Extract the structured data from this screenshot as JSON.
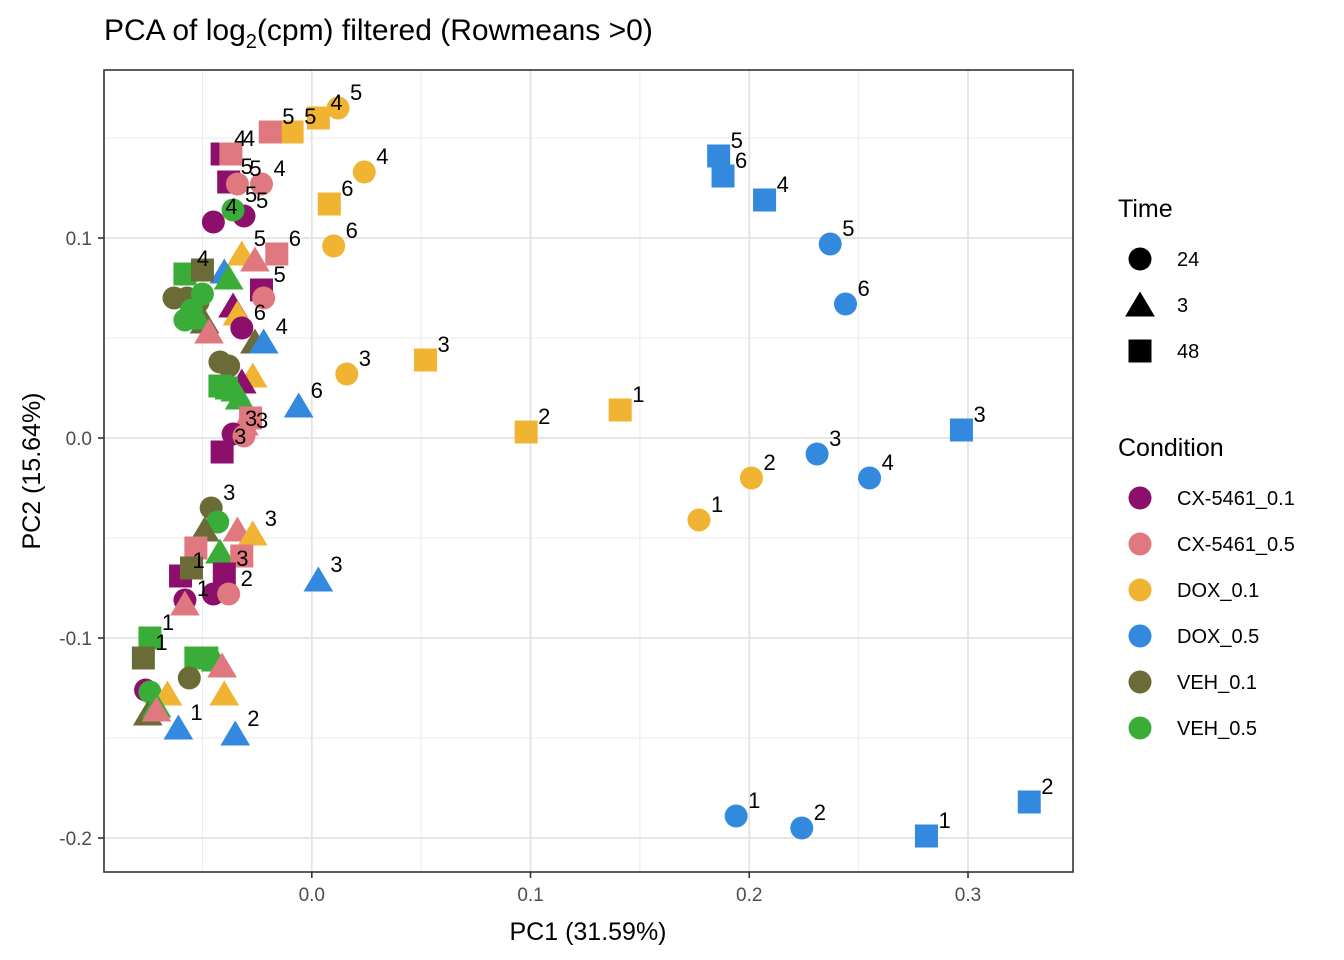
{
  "chart_data": {
    "type": "scatter",
    "title_main": "PCA of log",
    "title_sub": "2",
    "title_rest": "(cpm) filtered (Rowmeans >0)",
    "xlabel": "PC1 (31.59%)",
    "ylabel": "PC2 (15.64%)",
    "xlim": [
      -0.095,
      0.348
    ],
    "ylim": [
      -0.217,
      0.184
    ],
    "x_ticks": [
      0.0,
      0.1,
      0.2,
      0.3
    ],
    "x_tick_labels": [
      "0.0",
      "0.1",
      "0.2",
      "0.3"
    ],
    "y_ticks": [
      -0.2,
      -0.1,
      0.0,
      0.1
    ],
    "y_tick_labels": [
      "-0.2",
      "-0.1",
      "0.0",
      "0.1"
    ],
    "grid": true,
    "legend_placement": "right",
    "legend_time": {
      "title": "Time",
      "items": [
        {
          "label": "24",
          "shape": "circle"
        },
        {
          "label": "3",
          "shape": "triangle"
        },
        {
          "label": "48",
          "shape": "square"
        }
      ]
    },
    "legend_condition": {
      "title": "Condition",
      "items": [
        {
          "label": "CX-5461_0.1",
          "color": "#8B0F6B"
        },
        {
          "label": "CX-5461_0.5",
          "color": "#E07880"
        },
        {
          "label": "DOX_0.1",
          "color": "#F0B332"
        },
        {
          "label": "DOX_0.5",
          "color": "#3389DD"
        },
        {
          "label": "VEH_0.1",
          "color": "#6B6B38"
        },
        {
          "label": "VEH_0.5",
          "color": "#3AAD39"
        }
      ]
    },
    "points": [
      {
        "x": 0.012,
        "y": 0.165,
        "condition": "DOX_0.1",
        "time": "24",
        "label": "5"
      },
      {
        "x": 0.003,
        "y": 0.16,
        "condition": "DOX_0.1",
        "time": "48",
        "label": "4"
      },
      {
        "x": -0.009,
        "y": 0.153,
        "condition": "DOX_0.1",
        "time": "48",
        "label": "5"
      },
      {
        "x": -0.019,
        "y": 0.153,
        "condition": "CX-5461_0.5",
        "time": "48",
        "label": "5"
      },
      {
        "x": -0.041,
        "y": 0.142,
        "condition": "CX-5461_0.1",
        "time": "48",
        "label": "4"
      },
      {
        "x": -0.037,
        "y": 0.142,
        "condition": "CX-5461_0.5",
        "time": "48",
        "label": "4"
      },
      {
        "x": -0.038,
        "y": 0.128,
        "condition": "CX-5461_0.1",
        "time": "48",
        "label": "5"
      },
      {
        "x": -0.034,
        "y": 0.127,
        "condition": "CX-5461_0.5",
        "time": "24",
        "label": "5"
      },
      {
        "x": -0.023,
        "y": 0.127,
        "condition": "CX-5461_0.5",
        "time": "24",
        "label": "4"
      },
      {
        "x": 0.024,
        "y": 0.133,
        "condition": "DOX_0.1",
        "time": "24",
        "label": "4"
      },
      {
        "x": 0.008,
        "y": 0.117,
        "condition": "DOX_0.1",
        "time": "48",
        "label": "6"
      },
      {
        "x": 0.01,
        "y": 0.096,
        "condition": "DOX_0.1",
        "time": "24",
        "label": "6"
      },
      {
        "x": -0.045,
        "y": 0.108,
        "condition": "CX-5461_0.1",
        "time": "24",
        "label": "4"
      },
      {
        "x": -0.031,
        "y": 0.111,
        "condition": "CX-5461_0.1",
        "time": "24",
        "label": "5"
      },
      {
        "x": -0.036,
        "y": 0.114,
        "condition": "VEH_0.5",
        "time": "24",
        "label": "5"
      },
      {
        "x": -0.016,
        "y": 0.092,
        "condition": "CX-5461_0.5",
        "time": "48",
        "label": "6"
      },
      {
        "x": -0.032,
        "y": 0.092,
        "condition": "DOX_0.1",
        "time": "3",
        "label": "5"
      },
      {
        "x": -0.026,
        "y": 0.089,
        "condition": "CX-5461_0.5",
        "time": "3",
        "label": ""
      },
      {
        "x": -0.04,
        "y": 0.083,
        "condition": "DOX_0.5",
        "time": "3",
        "label": ""
      },
      {
        "x": -0.058,
        "y": 0.082,
        "condition": "VEH_0.5",
        "time": "48",
        "label": "4"
      },
      {
        "x": -0.05,
        "y": 0.084,
        "condition": "VEH_0.1",
        "time": "48",
        "label": ""
      },
      {
        "x": -0.038,
        "y": 0.08,
        "condition": "VEH_0.5",
        "time": "3",
        "label": ""
      },
      {
        "x": -0.023,
        "y": 0.074,
        "condition": "CX-5461_0.1",
        "time": "48",
        "label": "5"
      },
      {
        "x": -0.022,
        "y": 0.07,
        "condition": "CX-5461_0.5",
        "time": "24",
        "label": ""
      },
      {
        "x": -0.063,
        "y": 0.07,
        "condition": "VEH_0.1",
        "time": "24",
        "label": ""
      },
      {
        "x": -0.057,
        "y": 0.07,
        "condition": "VEH_0.1",
        "time": "24",
        "label": ""
      },
      {
        "x": -0.052,
        "y": 0.068,
        "condition": "VEH_0.1",
        "time": "24",
        "label": ""
      },
      {
        "x": -0.05,
        "y": 0.072,
        "condition": "VEH_0.5",
        "time": "24",
        "label": ""
      },
      {
        "x": -0.055,
        "y": 0.064,
        "condition": "VEH_0.5",
        "time": "24",
        "label": ""
      },
      {
        "x": -0.058,
        "y": 0.059,
        "condition": "VEH_0.5",
        "time": "24",
        "label": ""
      },
      {
        "x": -0.036,
        "y": 0.066,
        "condition": "CX-5461_0.1",
        "time": "3",
        "label": ""
      },
      {
        "x": -0.034,
        "y": 0.062,
        "condition": "DOX_0.1",
        "time": "3",
        "label": ""
      },
      {
        "x": -0.049,
        "y": 0.058,
        "condition": "VEH_0.1",
        "time": "3",
        "label": ""
      },
      {
        "x": -0.052,
        "y": 0.06,
        "condition": "VEH_0.5",
        "time": "3",
        "label": ""
      },
      {
        "x": -0.032,
        "y": 0.055,
        "condition": "CX-5461_0.1",
        "time": "24",
        "label": "6"
      },
      {
        "x": -0.047,
        "y": 0.053,
        "condition": "CX-5461_0.5",
        "time": "3",
        "label": ""
      },
      {
        "x": -0.026,
        "y": 0.048,
        "condition": "VEH_0.1",
        "time": "3",
        "label": ""
      },
      {
        "x": -0.022,
        "y": 0.048,
        "condition": "DOX_0.5",
        "time": "3",
        "label": "4"
      },
      {
        "x": 0.016,
        "y": 0.032,
        "condition": "DOX_0.1",
        "time": "24",
        "label": "3"
      },
      {
        "x": 0.052,
        "y": 0.039,
        "condition": "DOX_0.1",
        "time": "48",
        "label": "3"
      },
      {
        "x": -0.042,
        "y": 0.038,
        "condition": "VEH_0.1",
        "time": "24",
        "label": ""
      },
      {
        "x": -0.038,
        "y": 0.036,
        "condition": "VEH_0.1",
        "time": "24",
        "label": ""
      },
      {
        "x": -0.027,
        "y": 0.031,
        "condition": "DOX_0.1",
        "time": "3",
        "label": ""
      },
      {
        "x": -0.032,
        "y": 0.028,
        "condition": "CX-5461_0.1",
        "time": "3",
        "label": ""
      },
      {
        "x": -0.042,
        "y": 0.026,
        "condition": "VEH_0.5",
        "time": "48",
        "label": ""
      },
      {
        "x": -0.039,
        "y": 0.025,
        "condition": "VEH_0.5",
        "time": "48",
        "label": ""
      },
      {
        "x": -0.035,
        "y": 0.024,
        "condition": "VEH_0.5",
        "time": "3",
        "label": ""
      },
      {
        "x": -0.033,
        "y": 0.02,
        "condition": "VEH_0.5",
        "time": "3",
        "label": ""
      },
      {
        "x": -0.006,
        "y": 0.016,
        "condition": "DOX_0.5",
        "time": "3",
        "label": "6"
      },
      {
        "x": -0.028,
        "y": 0.01,
        "condition": "CX-5461_0.5",
        "time": "48",
        "label": ""
      },
      {
        "x": -0.031,
        "y": 0.007,
        "condition": "CX-5461_0.5",
        "time": "3",
        "label": ""
      },
      {
        "x": -0.036,
        "y": 0.002,
        "condition": "CX-5461_0.1",
        "time": "24",
        "label": "3"
      },
      {
        "x": -0.031,
        "y": 0.001,
        "condition": "CX-5461_0.5",
        "time": "24",
        "label": "3"
      },
      {
        "x": -0.041,
        "y": -0.007,
        "condition": "CX-5461_0.1",
        "time": "48",
        "label": "3"
      },
      {
        "x": 0.098,
        "y": 0.003,
        "condition": "DOX_0.1",
        "time": "48",
        "label": "2"
      },
      {
        "x": 0.141,
        "y": 0.014,
        "condition": "DOX_0.1",
        "time": "48",
        "label": "1"
      },
      {
        "x": 0.186,
        "y": 0.141,
        "condition": "DOX_0.5",
        "time": "48",
        "label": "5"
      },
      {
        "x": 0.188,
        "y": 0.131,
        "condition": "DOX_0.5",
        "time": "48",
        "label": "6"
      },
      {
        "x": 0.207,
        "y": 0.119,
        "condition": "DOX_0.5",
        "time": "48",
        "label": "4"
      },
      {
        "x": 0.237,
        "y": 0.097,
        "condition": "DOX_0.5",
        "time": "24",
        "label": "5"
      },
      {
        "x": 0.244,
        "y": 0.067,
        "condition": "DOX_0.5",
        "time": "24",
        "label": "6"
      },
      {
        "x": 0.297,
        "y": 0.004,
        "condition": "DOX_0.5",
        "time": "48",
        "label": "3"
      },
      {
        "x": 0.231,
        "y": -0.008,
        "condition": "DOX_0.5",
        "time": "24",
        "label": "3"
      },
      {
        "x": 0.255,
        "y": -0.02,
        "condition": "DOX_0.5",
        "time": "24",
        "label": "4"
      },
      {
        "x": 0.201,
        "y": -0.02,
        "condition": "DOX_0.1",
        "time": "24",
        "label": "2"
      },
      {
        "x": 0.177,
        "y": -0.041,
        "condition": "DOX_0.1",
        "time": "24",
        "label": "1"
      },
      {
        "x": -0.046,
        "y": -0.035,
        "condition": "VEH_0.1",
        "time": "24",
        "label": "3"
      },
      {
        "x": -0.043,
        "y": -0.042,
        "condition": "VEH_0.5",
        "time": "24",
        "label": ""
      },
      {
        "x": -0.049,
        "y": -0.046,
        "condition": "VEH_0.1",
        "time": "3",
        "label": ""
      },
      {
        "x": -0.034,
        "y": -0.046,
        "condition": "CX-5461_0.5",
        "time": "3",
        "label": ""
      },
      {
        "x": -0.027,
        "y": -0.048,
        "condition": "DOX_0.1",
        "time": "3",
        "label": "3"
      },
      {
        "x": -0.053,
        "y": -0.055,
        "condition": "CX-5461_0.5",
        "time": "48",
        "label": ""
      },
      {
        "x": -0.042,
        "y": -0.057,
        "condition": "VEH_0.5",
        "time": "3",
        "label": ""
      },
      {
        "x": -0.032,
        "y": -0.059,
        "condition": "CX-5461_0.5",
        "time": "48",
        "label": ""
      },
      {
        "x": 0.003,
        "y": -0.071,
        "condition": "DOX_0.5",
        "time": "3",
        "label": "3"
      },
      {
        "x": -0.06,
        "y": -0.069,
        "condition": "CX-5461_0.1",
        "time": "48",
        "label": "1"
      },
      {
        "x": -0.055,
        "y": -0.065,
        "condition": "VEH_0.1",
        "time": "48",
        "label": ""
      },
      {
        "x": -0.04,
        "y": -0.068,
        "condition": "CX-5461_0.1",
        "time": "48",
        "label": "3"
      },
      {
        "x": -0.058,
        "y": -0.081,
        "condition": "CX-5461_0.1",
        "time": "24",
        "label": ""
      },
      {
        "x": -0.058,
        "y": -0.083,
        "condition": "CX-5461_0.5",
        "time": "3",
        "label": "1"
      },
      {
        "x": -0.045,
        "y": -0.078,
        "condition": "CX-5461_0.1",
        "time": "24",
        "label": ""
      },
      {
        "x": -0.038,
        "y": -0.078,
        "condition": "CX-5461_0.5",
        "time": "24",
        "label": "2"
      },
      {
        "x": -0.074,
        "y": -0.1,
        "condition": "VEH_0.5",
        "time": "48",
        "label": "1"
      },
      {
        "x": -0.077,
        "y": -0.11,
        "condition": "VEH_0.1",
        "time": "48",
        "label": "1"
      },
      {
        "x": -0.053,
        "y": -0.11,
        "condition": "VEH_0.5",
        "time": "48",
        "label": ""
      },
      {
        "x": -0.048,
        "y": -0.11,
        "condition": "VEH_0.5",
        "time": "48",
        "label": ""
      },
      {
        "x": -0.044,
        "y": -0.111,
        "condition": "VEH_0.5",
        "time": "3",
        "label": ""
      },
      {
        "x": -0.041,
        "y": -0.114,
        "condition": "CX-5461_0.5",
        "time": "3",
        "label": ""
      },
      {
        "x": -0.056,
        "y": -0.12,
        "condition": "VEH_0.1",
        "time": "24",
        "label": ""
      },
      {
        "x": -0.076,
        "y": -0.126,
        "condition": "CX-5461_0.1",
        "time": "24",
        "label": ""
      },
      {
        "x": -0.074,
        "y": -0.127,
        "condition": "VEH_0.5",
        "time": "24",
        "label": ""
      },
      {
        "x": -0.066,
        "y": -0.128,
        "condition": "DOX_0.1",
        "time": "3",
        "label": ""
      },
      {
        "x": -0.04,
        "y": -0.128,
        "condition": "DOX_0.1",
        "time": "3",
        "label": ""
      },
      {
        "x": -0.075,
        "y": -0.138,
        "condition": "VEH_0.1",
        "time": "3",
        "label": ""
      },
      {
        "x": -0.071,
        "y": -0.134,
        "condition": "VEH_0.5",
        "time": "3",
        "label": ""
      },
      {
        "x": -0.071,
        "y": -0.136,
        "condition": "CX-5461_0.5",
        "time": "3",
        "label": ""
      },
      {
        "x": -0.061,
        "y": -0.145,
        "condition": "DOX_0.5",
        "time": "3",
        "label": "1"
      },
      {
        "x": -0.035,
        "y": -0.148,
        "condition": "DOX_0.5",
        "time": "3",
        "label": "2"
      },
      {
        "x": 0.194,
        "y": -0.189,
        "condition": "DOX_0.5",
        "time": "24",
        "label": "1"
      },
      {
        "x": 0.224,
        "y": -0.195,
        "condition": "DOX_0.5",
        "time": "24",
        "label": "2"
      },
      {
        "x": 0.281,
        "y": -0.199,
        "condition": "DOX_0.5",
        "time": "48",
        "label": "1"
      },
      {
        "x": 0.328,
        "y": -0.182,
        "condition": "DOX_0.5",
        "time": "48",
        "label": "2"
      }
    ]
  }
}
